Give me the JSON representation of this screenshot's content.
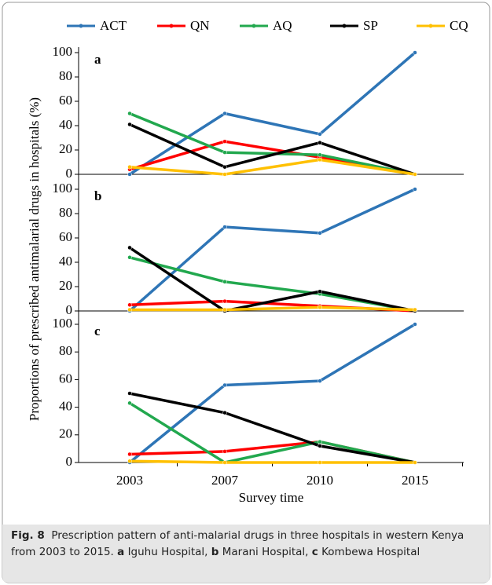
{
  "ylabel": "Proportions of prescribed antimalarial drugs in hospitals  (%)",
  "chart_data": [
    {
      "type": "line",
      "panel": "a",
      "ylim": [
        0,
        100
      ],
      "yticks": [
        0,
        20,
        40,
        60,
        80,
        100
      ],
      "series": [
        {
          "name": "ACT",
          "color": "#2e75b6",
          "values": [
            0,
            50,
            33,
            100
          ]
        },
        {
          "name": "QN",
          "color": "#ff0000",
          "values": [
            4,
            27,
            14,
            0
          ]
        },
        {
          "name": "AQ",
          "color": "#22a84e",
          "values": [
            50,
            18,
            16,
            0
          ]
        },
        {
          "name": "SP",
          "color": "#000000",
          "values": [
            41,
            6,
            26,
            0
          ]
        },
        {
          "name": "CQ",
          "color": "#ffc000",
          "values": [
            6,
            0,
            12,
            0
          ]
        }
      ]
    },
    {
      "type": "line",
      "panel": "b",
      "ylim": [
        0,
        100
      ],
      "yticks": [
        0,
        20,
        40,
        60,
        80,
        100
      ],
      "series": [
        {
          "color": "#2e75b6",
          "values": [
            0,
            69,
            64,
            100
          ]
        },
        {
          "color": "#ff0000",
          "values": [
            5,
            8,
            4,
            0
          ]
        },
        {
          "color": "#22a84e",
          "values": [
            44,
            24,
            14,
            0
          ]
        },
        {
          "color": "#000000",
          "values": [
            52,
            0,
            16,
            0
          ]
        },
        {
          "color": "#ffc000",
          "values": [
            1,
            1,
            3,
            1
          ]
        }
      ]
    },
    {
      "type": "line",
      "panel": "c",
      "ylim": [
        0,
        100
      ],
      "yticks": [
        0,
        20,
        40,
        60,
        80,
        100
      ],
      "categories": [
        "2003",
        "2007",
        "2010",
        "2015"
      ],
      "xlabel": "Survey time",
      "series": [
        {
          "color": "#2e75b6",
          "values": [
            0,
            56,
            59,
            100
          ]
        },
        {
          "color": "#ff0000",
          "values": [
            6,
            8,
            15,
            0
          ]
        },
        {
          "color": "#22a84e",
          "values": [
            43,
            0,
            15,
            0
          ]
        },
        {
          "color": "#000000",
          "values": [
            50,
            36,
            12,
            0
          ]
        },
        {
          "color": "#ffc000",
          "values": [
            1,
            0,
            0,
            0
          ]
        }
      ]
    }
  ],
  "caption": {
    "label": "Fig. 8",
    "text": "Prescription pattern of anti-malarial drugs in three hospitals in western Kenya from 2003 to 2015.",
    "panels": [
      {
        "letter": "a",
        "name": "Iguhu Hospital,"
      },
      {
        "letter": "b",
        "name": "Marani Hospital,"
      },
      {
        "letter": "c",
        "name": "Kombewa Hospital"
      }
    ]
  }
}
